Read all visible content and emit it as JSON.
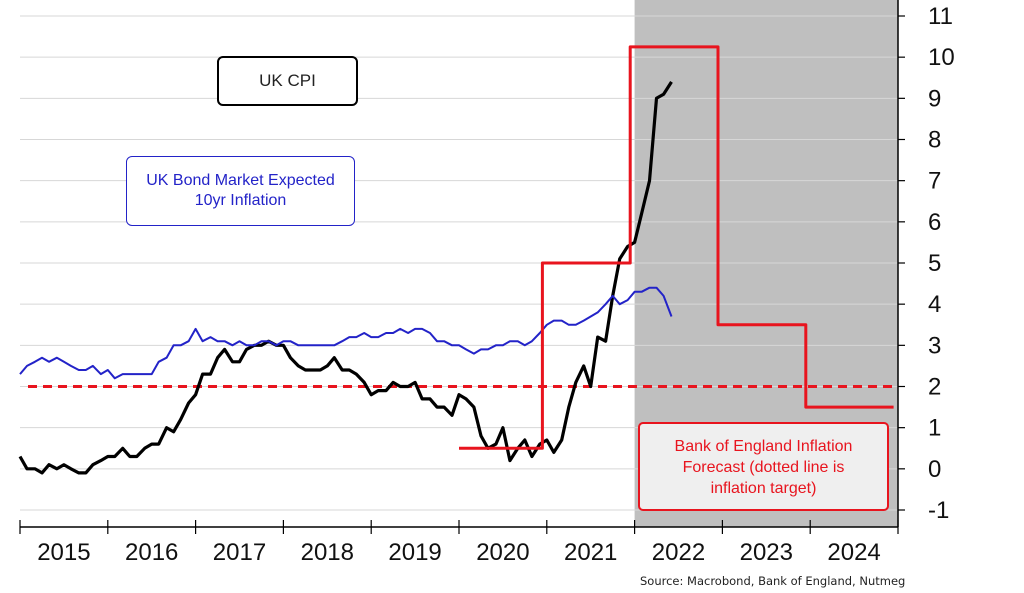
{
  "chart_data": {
    "type": "line",
    "ylim": [
      -1,
      11
    ],
    "yticks": [
      -1,
      0,
      1,
      2,
      3,
      4,
      5,
      6,
      7,
      8,
      9,
      10,
      11
    ],
    "xlim": [
      2015,
      2025
    ],
    "categories": [
      "2015",
      "2016",
      "2017",
      "2018",
      "2019",
      "2020",
      "2021",
      "2022",
      "2023",
      "2024"
    ],
    "grid": true,
    "shaded_region": [
      2022,
      2025
    ],
    "colors": {
      "cpi": "#000000",
      "bond": "#2323c8",
      "forecast": "#e8141e",
      "shade": "#bfbfbf"
    },
    "annotations": {
      "cpi_label": "UK CPI",
      "bond_label_line1": "UK Bond Market Expected",
      "bond_label_line2": "10yr Inflation",
      "boe_label_line1": "Bank of England Inflation",
      "boe_label_line2": "Forecast (dotted line is",
      "boe_label_line3": "inflation target)"
    },
    "source": "Source: Macrobond, Bank of England, Nutmeg",
    "target": 2,
    "series": [
      {
        "key": "cpi",
        "x": [
          2015.0,
          2015.08,
          2015.17,
          2015.25,
          2015.33,
          2015.42,
          2015.5,
          2015.58,
          2015.67,
          2015.75,
          2015.83,
          2015.92,
          2016.0,
          2016.08,
          2016.17,
          2016.25,
          2016.33,
          2016.42,
          2016.5,
          2016.58,
          2016.67,
          2016.75,
          2016.83,
          2016.92,
          2017.0,
          2017.08,
          2017.17,
          2017.25,
          2017.33,
          2017.42,
          2017.5,
          2017.58,
          2017.67,
          2017.75,
          2017.83,
          2017.92,
          2018.0,
          2018.08,
          2018.17,
          2018.25,
          2018.33,
          2018.42,
          2018.5,
          2018.58,
          2018.67,
          2018.75,
          2018.83,
          2018.92,
          2019.0,
          2019.08,
          2019.17,
          2019.25,
          2019.33,
          2019.42,
          2019.5,
          2019.58,
          2019.67,
          2019.75,
          2019.83,
          2019.92,
          2020.0,
          2020.08,
          2020.17,
          2020.25,
          2020.33,
          2020.42,
          2020.5,
          2020.58,
          2020.67,
          2020.75,
          2020.83,
          2020.92,
          2021.0,
          2021.08,
          2021.17,
          2021.25,
          2021.33,
          2021.42,
          2021.5,
          2021.58,
          2021.67,
          2021.75,
          2021.83,
          2021.92,
          2022.0,
          2022.08,
          2022.17,
          2022.25,
          2022.33,
          2022.42
        ],
        "values": [
          0.3,
          0.0,
          0.0,
          -0.1,
          0.1,
          0.0,
          0.1,
          0.0,
          -0.1,
          -0.1,
          0.1,
          0.2,
          0.3,
          0.3,
          0.5,
          0.3,
          0.3,
          0.5,
          0.6,
          0.6,
          1.0,
          0.9,
          1.2,
          1.6,
          1.8,
          2.3,
          2.3,
          2.7,
          2.9,
          2.6,
          2.6,
          2.9,
          3.0,
          3.0,
          3.1,
          3.0,
          3.0,
          2.7,
          2.5,
          2.4,
          2.4,
          2.4,
          2.5,
          2.7,
          2.4,
          2.4,
          2.3,
          2.1,
          1.8,
          1.9,
          1.9,
          2.1,
          2.0,
          2.0,
          2.1,
          1.7,
          1.7,
          1.5,
          1.5,
          1.3,
          1.8,
          1.7,
          1.5,
          0.8,
          0.5,
          0.6,
          1.0,
          0.2,
          0.5,
          0.7,
          0.3,
          0.6,
          0.7,
          0.4,
          0.7,
          1.5,
          2.1,
          2.5,
          2.0,
          3.2,
          3.1,
          4.2,
          5.1,
          5.4,
          5.5,
          6.2,
          7.0,
          9.0,
          9.1,
          9.4
        ]
      },
      {
        "key": "bond",
        "x": [
          2015.0,
          2015.08,
          2015.17,
          2015.25,
          2015.33,
          2015.42,
          2015.5,
          2015.58,
          2015.67,
          2015.75,
          2015.83,
          2015.92,
          2016.0,
          2016.08,
          2016.17,
          2016.25,
          2016.33,
          2016.42,
          2016.5,
          2016.58,
          2016.67,
          2016.75,
          2016.83,
          2016.92,
          2017.0,
          2017.08,
          2017.17,
          2017.25,
          2017.33,
          2017.42,
          2017.5,
          2017.58,
          2017.67,
          2017.75,
          2017.83,
          2017.92,
          2018.0,
          2018.08,
          2018.17,
          2018.25,
          2018.33,
          2018.42,
          2018.5,
          2018.58,
          2018.67,
          2018.75,
          2018.83,
          2018.92,
          2019.0,
          2019.08,
          2019.17,
          2019.25,
          2019.33,
          2019.42,
          2019.5,
          2019.58,
          2019.67,
          2019.75,
          2019.83,
          2019.92,
          2020.0,
          2020.08,
          2020.17,
          2020.25,
          2020.33,
          2020.42,
          2020.5,
          2020.58,
          2020.67,
          2020.75,
          2020.83,
          2020.92,
          2021.0,
          2021.08,
          2021.17,
          2021.25,
          2021.33,
          2021.42,
          2021.5,
          2021.58,
          2021.67,
          2021.75,
          2021.83,
          2021.92,
          2022.0,
          2022.08,
          2022.17,
          2022.25,
          2022.33,
          2022.42
        ],
        "values": [
          2.3,
          2.5,
          2.6,
          2.7,
          2.6,
          2.7,
          2.6,
          2.5,
          2.4,
          2.4,
          2.5,
          2.3,
          2.4,
          2.2,
          2.3,
          2.3,
          2.3,
          2.3,
          2.3,
          2.6,
          2.7,
          3.0,
          3.0,
          3.1,
          3.4,
          3.1,
          3.2,
          3.1,
          3.1,
          3.0,
          3.1,
          3.0,
          3.0,
          3.1,
          3.1,
          3.0,
          3.1,
          3.1,
          3.0,
          3.0,
          3.0,
          3.0,
          3.0,
          3.0,
          3.1,
          3.2,
          3.2,
          3.3,
          3.2,
          3.2,
          3.3,
          3.3,
          3.4,
          3.3,
          3.4,
          3.4,
          3.3,
          3.1,
          3.1,
          3.0,
          3.0,
          2.9,
          2.8,
          2.9,
          2.9,
          3.0,
          3.0,
          3.1,
          3.1,
          3.0,
          3.1,
          3.3,
          3.5,
          3.6,
          3.6,
          3.5,
          3.5,
          3.6,
          3.7,
          3.8,
          4.0,
          4.2,
          4.0,
          4.1,
          4.3,
          4.3,
          4.4,
          4.4,
          4.2,
          3.7
        ]
      },
      {
        "key": "forecast",
        "x": [
          2020.0,
          2020.95,
          2020.95,
          2021.95,
          2021.95,
          2022.95,
          2022.95,
          2023.95,
          2023.95,
          2024.95
        ],
        "values": [
          0.5,
          0.5,
          5.0,
          5.0,
          10.25,
          10.25,
          3.5,
          3.5,
          1.5,
          1.5
        ]
      }
    ]
  }
}
